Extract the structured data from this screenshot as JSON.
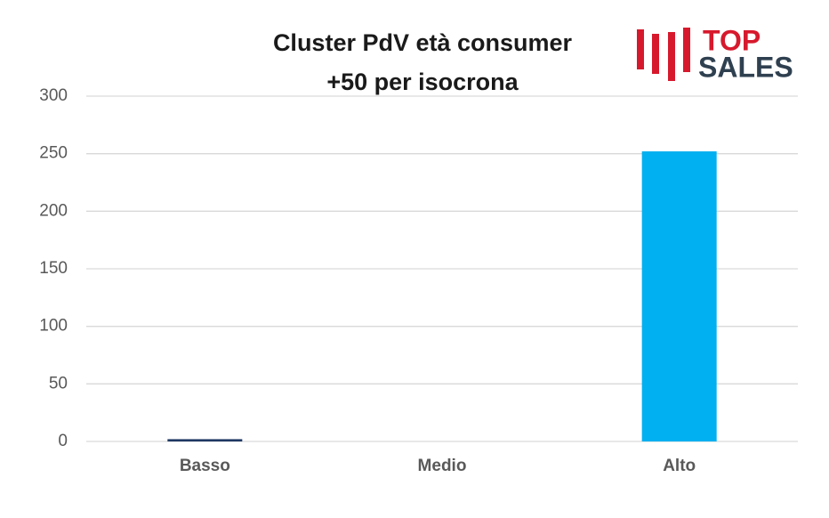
{
  "chart_data": {
    "type": "bar",
    "title": [
      "Cluster PdV età consumer",
      "+50 per isocrona"
    ],
    "categories": [
      "Basso",
      "Medio",
      "Alto"
    ],
    "values": [
      2,
      0,
      252
    ],
    "colors": [
      "#1f3864",
      "#1f3864",
      "#00b0f0"
    ],
    "ylim": [
      0,
      300
    ],
    "yticks": [
      0,
      50,
      100,
      150,
      200,
      250,
      300
    ],
    "grid": true
  },
  "logo": [
    "TOP",
    "SALES"
  ]
}
